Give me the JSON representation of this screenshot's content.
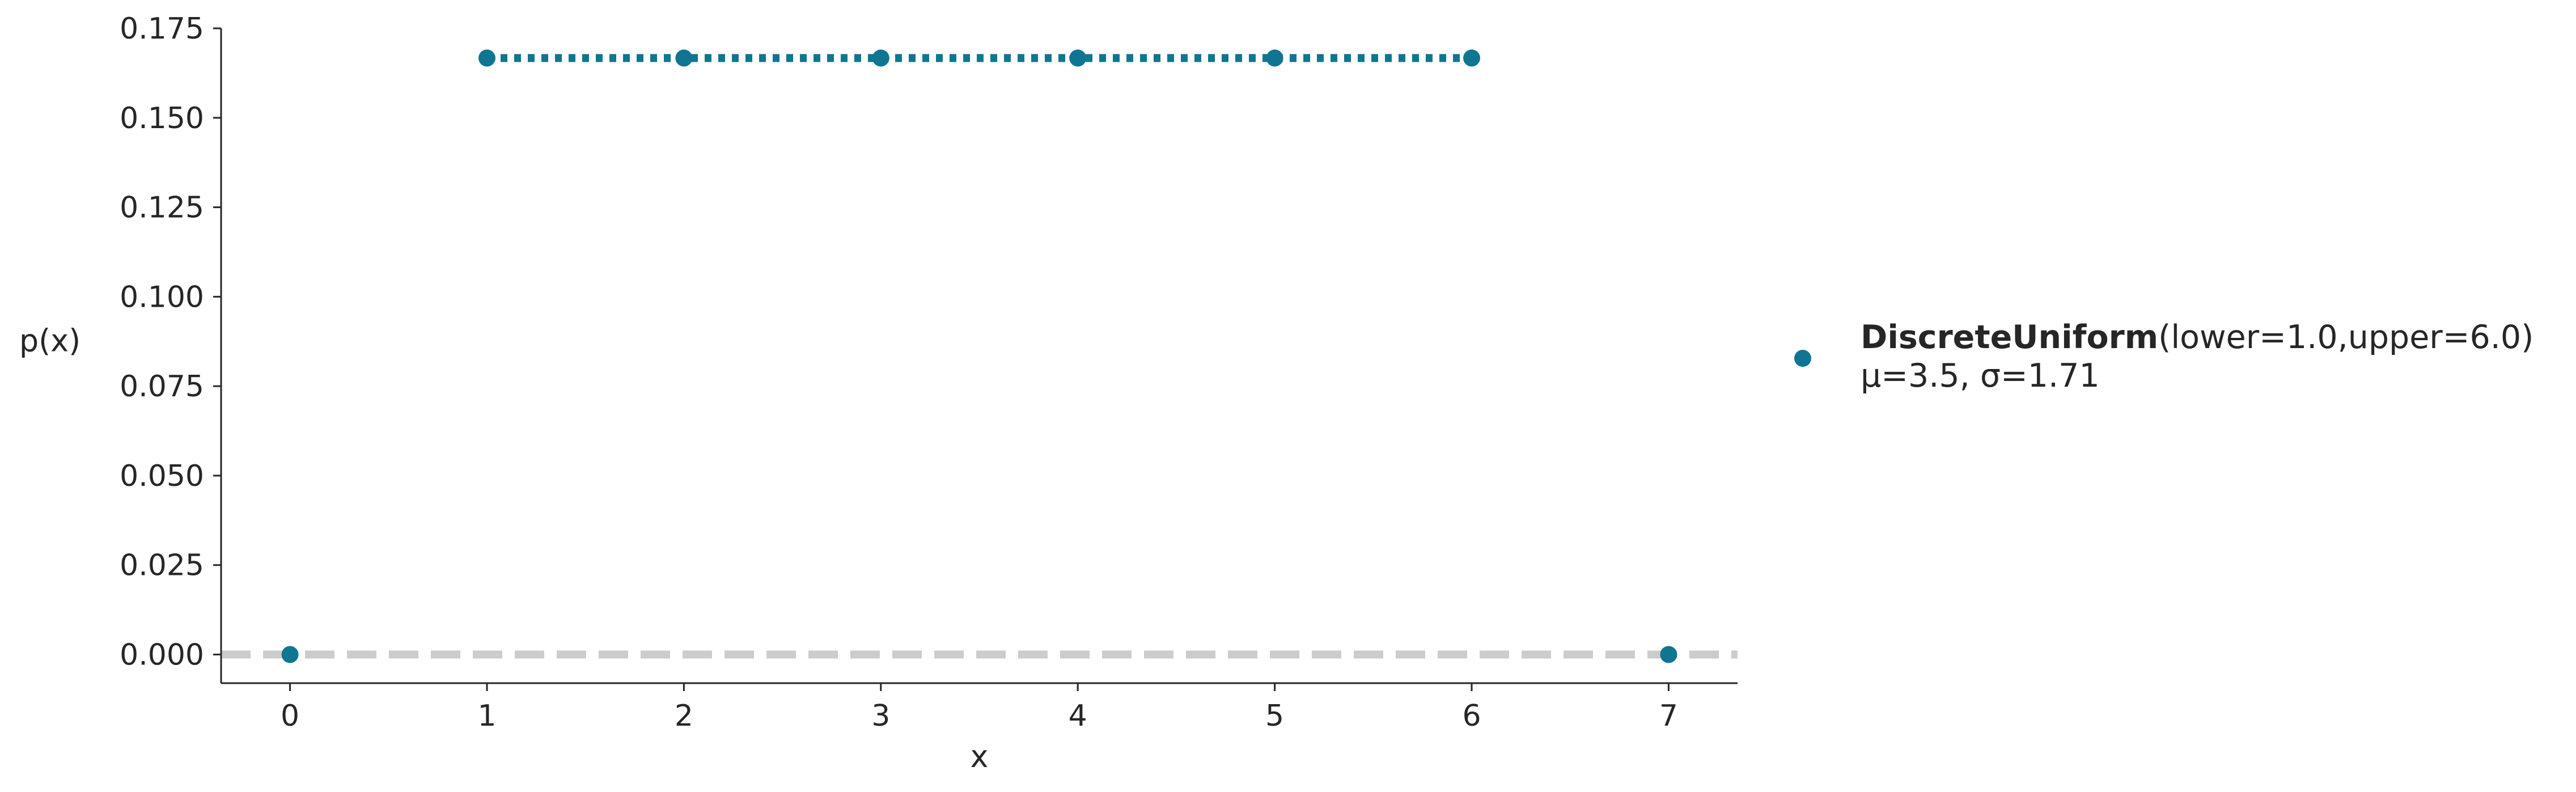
{
  "chart_data": {
    "type": "scatter",
    "title": "",
    "xlabel": "x",
    "ylabel": "p(x)",
    "xlim": [
      -0.35,
      7.35
    ],
    "ylim": [
      -0.008,
      0.175
    ],
    "xticks": [
      "0",
      "1",
      "2",
      "3",
      "4",
      "5",
      "6",
      "7"
    ],
    "yticks": [
      "0.000",
      "0.025",
      "0.050",
      "0.075",
      "0.100",
      "0.125",
      "0.150",
      "0.175"
    ],
    "grid": false,
    "legend_placement": "right",
    "series": [
      {
        "name_bold": "DiscreteUniform",
        "name_params": "(lower=1.0,upper=6.0)",
        "stats": "μ=3.5, σ=1.71",
        "color": "#0f7592",
        "x": [
          0,
          1,
          2,
          3,
          4,
          5,
          6,
          7
        ],
        "y": [
          0,
          0.1667,
          0.1667,
          0.1667,
          0.1667,
          0.1667,
          0.1667,
          0
        ]
      }
    ],
    "support_line": {
      "x_from": 1,
      "x_to": 6,
      "y": 0.1667,
      "style": "dotted"
    },
    "reference_line": {
      "y": 0,
      "style": "dashed",
      "color": "#cccccc"
    }
  }
}
